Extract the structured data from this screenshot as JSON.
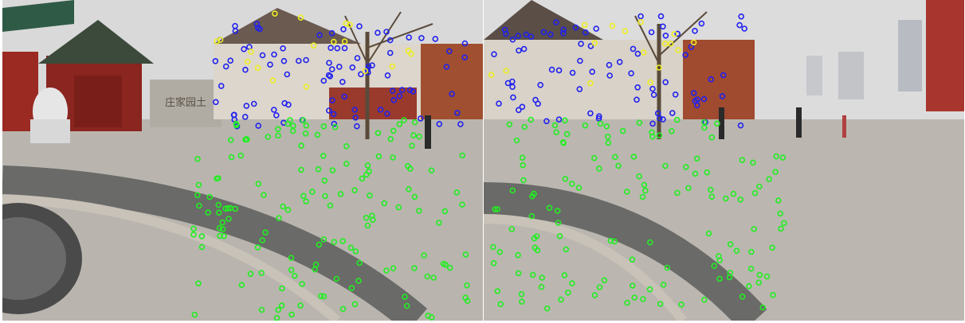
{
  "image": {
    "description_free": true,
    "panels": [
      "left-view",
      "right-view"
    ]
  },
  "signage": {
    "gate_plaque": "庄家园土"
  },
  "keypoint_colors": {
    "ground": "#22ee22",
    "building": "#2222ee",
    "tree": "#eeee22"
  },
  "scene_colors": {
    "sky": "#dcdcdc",
    "pavement": "#b8b4ae",
    "wall_red": "#9a2a22",
    "roof_dark": "#4a4642",
    "tile_ring": "#6a6a68"
  }
}
